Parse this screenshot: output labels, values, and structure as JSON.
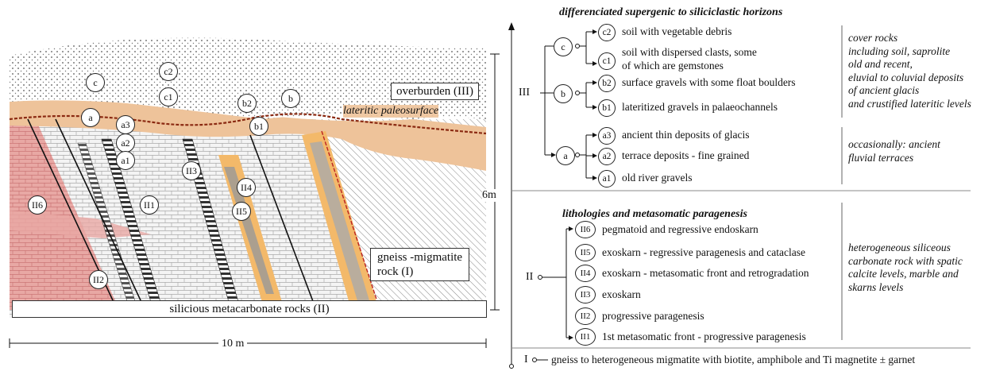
{
  "section": {
    "label_overburden": "overburden (III)",
    "label_paleosurface": "lateritic paleosurface",
    "label_gneiss_line1": "gneiss -migmatite",
    "label_gneiss_line2": "rock (I)",
    "label_metacarbonate": "silicious metacarbonate rocks   (II)",
    "scale_height": "6m",
    "scale_width": "10 m",
    "markers": {
      "c": "c",
      "c2": "c2",
      "c1": "c1",
      "b2": "b2",
      "b": "b",
      "b1": "b1",
      "a": "a",
      "a3": "a3",
      "a2": "a2",
      "a1": "a1",
      "II6": "II6",
      "II1": "II1",
      "II3": "II3",
      "II4": "II4",
      "II5": "II5",
      "II2": "II2"
    }
  },
  "legend": {
    "top_title": "differenciated supergenic to siliciclastic horizons",
    "III_label": "III",
    "c_node": "c",
    "b_node": "b",
    "a_node": "a",
    "items_c": [
      {
        "code": "c2",
        "text": "soil with vegetable debris"
      },
      {
        "code": "c1",
        "text_line1": "soil with dispersed clasts, some",
        "text_line2": "of which are gemstones"
      }
    ],
    "items_b": [
      {
        "code": "b2",
        "text": "surface gravels with some float boulders"
      },
      {
        "code": "b1",
        "text": "lateritized gravels in palaeochannels"
      }
    ],
    "items_a": [
      {
        "code": "a3",
        "text": "ancient thin deposits of glacis"
      },
      {
        "code": "a2",
        "text": "terrace deposits - fine grained"
      },
      {
        "code": "a1",
        "text": "old river gravels"
      }
    ],
    "note_cover": [
      "cover rocks",
      "including soil, saprolite",
      "old and recent,",
      "eluvial to coluvial deposits",
      "of ancient  glacis",
      "and crustified lateritic levels"
    ],
    "note_terraces": [
      "occasionally: ancient",
      "fluvial terraces"
    ],
    "mid_title": "lithologies and metasomatic paragenesis",
    "II_label": "II",
    "items_II": [
      {
        "code": "II6",
        "text": "pegmatoid and regressive endoskarn"
      },
      {
        "code": "II5",
        "text": "exoskarn - regressive paragenesis and cataclase"
      },
      {
        "code": "II4",
        "text": "exoskarn - metasomatic front and retrogradation"
      },
      {
        "code": "II3",
        "text": "exoskarn"
      },
      {
        "code": "II2",
        "text": "progressive paragenesis"
      },
      {
        "code": "II1",
        "text": "1st metasomatic front - progressive paragenesis"
      }
    ],
    "note_II": [
      "heterogeneous siliceous",
      "carbonate rock with spatic",
      "calcite levels, marble and",
      "skarns levels"
    ],
    "I_label": "I",
    "I_text": "gneiss to heterogeneous migmatite with biotite, amphibole and Ti magnetite ± garnet"
  }
}
